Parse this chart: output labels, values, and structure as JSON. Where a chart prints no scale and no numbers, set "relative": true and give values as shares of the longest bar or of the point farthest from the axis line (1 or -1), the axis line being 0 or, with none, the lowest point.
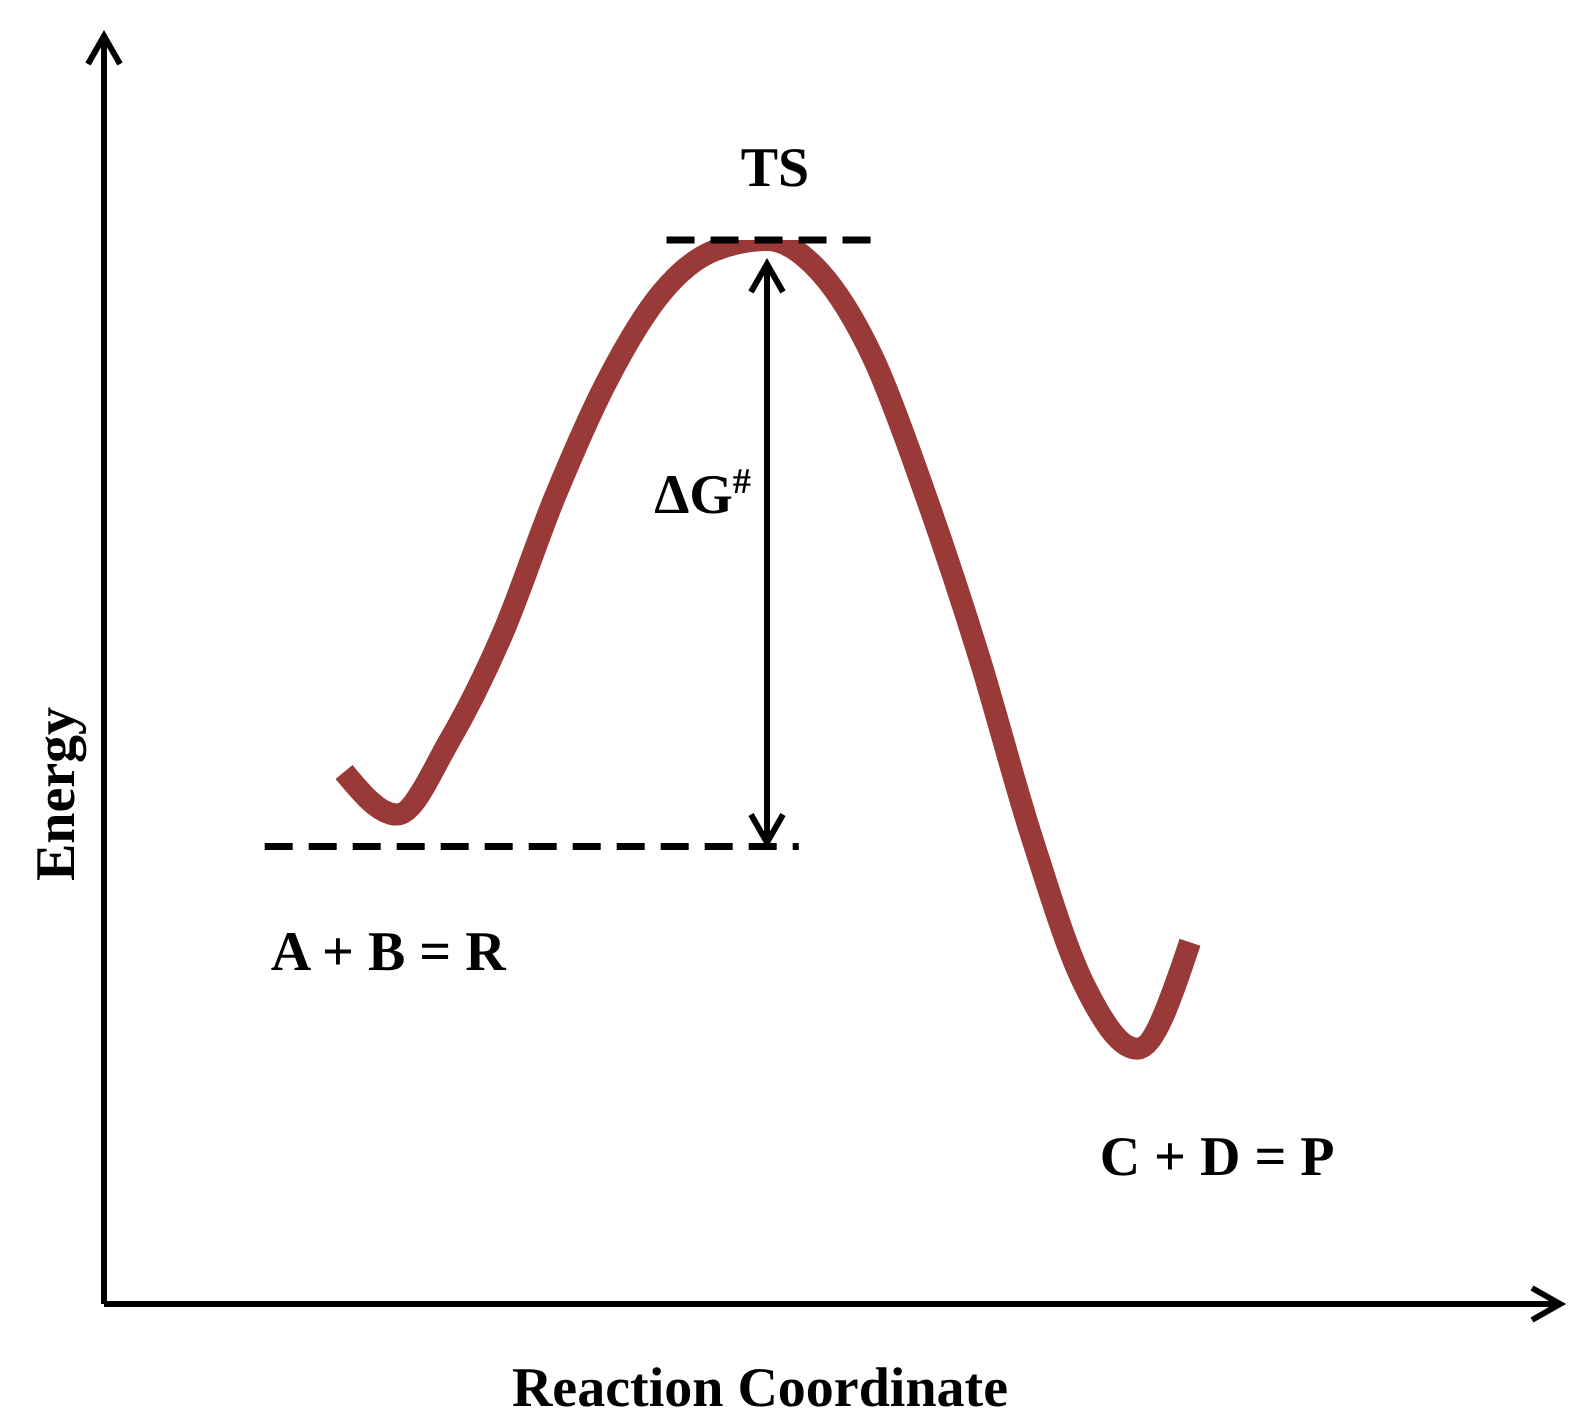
{
  "chart_data": {
    "type": "line",
    "relative": true,
    "xlabel": "Reaction Coordinate",
    "ylabel": "Energy",
    "categories": [
      null,
      null,
      null,
      null,
      null,
      null,
      null,
      null,
      null,
      null,
      null,
      null,
      null,
      null,
      null,
      null,
      null
    ],
    "series": [
      {
        "color": "#9a3a38",
        "values": [
          0.5,
          0.46,
          0.53,
          0.63,
          0.76,
          0.87,
          0.95,
          0.99,
          1,
          0.97,
          0.89,
          0.76,
          0.61,
          0.44,
          0.3,
          0.24,
          0.34
        ]
      }
    ],
    "ref_lines": [
      {
        "axis": "y",
        "value": 1,
        "label": "TS",
        "line_style": "dashed",
        "color": "#000000"
      },
      {
        "axis": "y",
        "value": 0.43,
        "label": "A + B = R",
        "line_style": "dashed",
        "color": "#000000"
      }
    ],
    "annotations": [
      "ΔG$^{#}$",
      "C + D = P"
    ]
  }
}
